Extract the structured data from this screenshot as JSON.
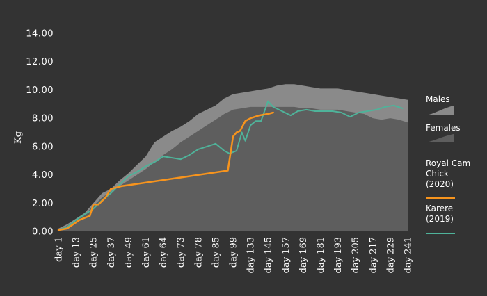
{
  "colors": {
    "background": "#333333",
    "males": "#8a8a8a",
    "females": "#5e5e5e",
    "royal_cam": "#f7941d",
    "karere": "#4fb39a",
    "text": "#ffffff"
  },
  "chart_data": {
    "type": "area",
    "ylabel": "Kg",
    "ylim": [
      0,
      14
    ],
    "y_ticks": [
      "0.00",
      "2.00",
      "4.00",
      "6.00",
      "8.00",
      "10.00",
      "12.00",
      "14.00"
    ],
    "x_ticks": [
      "day 1",
      "day 13",
      "day 25",
      "day 37",
      "day 49",
      "day 61",
      "day 64",
      "day 73",
      "day 78",
      "day 85",
      "day 99",
      "day 133",
      "day 145",
      "day 157",
      "day 169",
      "day 181",
      "day 193",
      "day 205",
      "day 217",
      "day 229",
      "day 241"
    ],
    "grid": false,
    "legend_position": "right",
    "series": [
      {
        "name": "Males",
        "kind": "area",
        "x": [
          0,
          0.5,
          1,
          1.5,
          2,
          2.5,
          3,
          3.5,
          4,
          4.5,
          5,
          5.5,
          6,
          6.5,
          7,
          7.5,
          8,
          8.5,
          9,
          9.5,
          10,
          10.5,
          11,
          11.5,
          12,
          12.5,
          13,
          13.5,
          14,
          14.5,
          15,
          15.5,
          16,
          16.5,
          17,
          17.5,
          18,
          18.5,
          19,
          19.5,
          20
        ],
        "values": [
          0.2,
          0.5,
          0.9,
          1.3,
          2.0,
          2.7,
          3.0,
          3.6,
          4.1,
          4.7,
          5.3,
          6.3,
          6.7,
          7.1,
          7.4,
          7.8,
          8.3,
          8.6,
          8.9,
          9.4,
          9.7,
          9.8,
          9.9,
          10.0,
          10.1,
          10.3,
          10.4,
          10.4,
          10.3,
          10.2,
          10.1,
          10.1,
          10.1,
          10.0,
          9.9,
          9.8,
          9.7,
          9.6,
          9.5,
          9.4,
          9.3
        ]
      },
      {
        "name": "Females",
        "kind": "area",
        "x": [
          0,
          0.5,
          1,
          1.5,
          2,
          2.5,
          3,
          3.5,
          4,
          4.5,
          5,
          5.5,
          6,
          6.5,
          7,
          7.5,
          8,
          8.5,
          9,
          9.5,
          10,
          10.5,
          11,
          11.5,
          12,
          12.5,
          13,
          13.5,
          14,
          14.5,
          15,
          15.5,
          16,
          16.5,
          17,
          17.5,
          18,
          18.5,
          19,
          19.5,
          20
        ],
        "values": [
          0.1,
          0.4,
          0.8,
          1.2,
          1.8,
          2.4,
          2.8,
          3.2,
          3.6,
          4.0,
          4.4,
          4.9,
          5.4,
          5.8,
          6.3,
          6.7,
          7.1,
          7.5,
          7.9,
          8.3,
          8.6,
          8.7,
          8.8,
          8.8,
          8.8,
          8.8,
          8.8,
          8.8,
          8.7,
          8.7,
          8.6,
          8.6,
          8.6,
          8.5,
          8.4,
          8.3,
          8.0,
          7.9,
          8.0,
          7.9,
          7.7
        ]
      },
      {
        "name": "Royal Cam Chick (2020)",
        "kind": "line",
        "x": [
          0,
          0.5,
          1.2,
          1.8,
          2.0,
          2.3,
          2.7,
          3.0,
          3.6,
          4.2,
          9.7,
          10.0,
          10.2,
          10.4,
          10.7,
          11.0,
          11.5,
          12.0,
          12.3
        ],
        "values": [
          0.1,
          0.2,
          0.8,
          1.1,
          1.9,
          1.9,
          2.4,
          3.0,
          3.2,
          3.3,
          4.3,
          6.7,
          7.0,
          7.1,
          7.8,
          8.0,
          8.2,
          8.3,
          8.4
        ]
      },
      {
        "name": "Karere (2019)",
        "kind": "line",
        "x": [
          0,
          0.5,
          1.0,
          1.5,
          2.0,
          2.5,
          3.0,
          3.5,
          4.0,
          4.5,
          5.0,
          5.5,
          6.0,
          6.5,
          7.0,
          7.5,
          8.0,
          8.5,
          9.0,
          9.5,
          9.8,
          10.2,
          10.5,
          10.7,
          11.0,
          11.3,
          11.6,
          12.0,
          12.3,
          12.8,
          13.3,
          13.7,
          14.2,
          14.7,
          15.2,
          15.7,
          16.2,
          16.7,
          17.2,
          17.7,
          18.2,
          18.7,
          19.2,
          19.7
        ],
        "values": [
          0.1,
          0.3,
          0.8,
          1.2,
          1.6,
          2.2,
          2.7,
          3.3,
          3.9,
          4.2,
          4.6,
          4.9,
          5.3,
          5.2,
          5.1,
          5.4,
          5.8,
          6.0,
          6.2,
          5.7,
          5.5,
          5.7,
          7.0,
          6.4,
          7.5,
          7.8,
          7.8,
          9.2,
          8.8,
          8.5,
          8.2,
          8.5,
          8.6,
          8.5,
          8.5,
          8.5,
          8.4,
          8.1,
          8.4,
          8.5,
          8.6,
          8.8,
          8.9,
          8.7
        ]
      }
    ],
    "legend": [
      {
        "label": "Males",
        "kind": "area"
      },
      {
        "label": "Females",
        "kind": "area"
      },
      {
        "label_lines": [
          "Royal Cam",
          "Chick",
          "(2020)"
        ],
        "kind": "line"
      },
      {
        "label_lines": [
          "Karere",
          "(2019)"
        ],
        "kind": "line"
      }
    ]
  }
}
